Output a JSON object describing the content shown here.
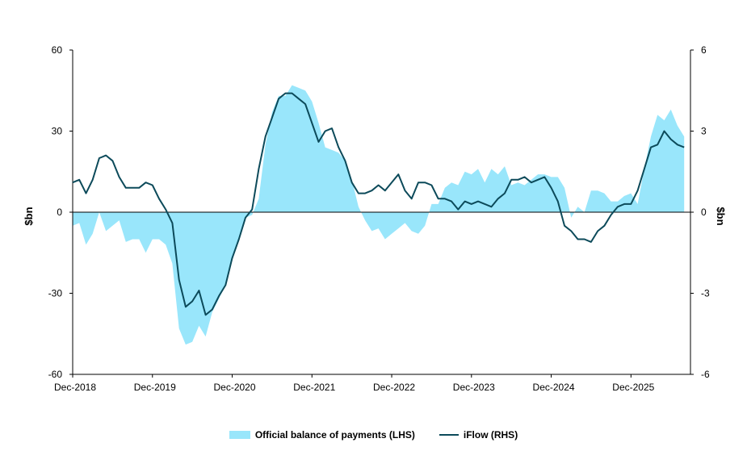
{
  "chart_data": {
    "type": "area+line",
    "ylabel_left": "$bn",
    "ylabel_right": "$bn",
    "ylim_left": [
      -60,
      60
    ],
    "ylim_right": [
      -6,
      6
    ],
    "yticks_left": [
      "60",
      "30",
      "0",
      "-30",
      "-60"
    ],
    "yticks_right": [
      "6",
      "3",
      "0",
      "-3",
      "-6"
    ],
    "x_tick_labels": [
      "Dec-2018",
      "Dec-2019",
      "Dec-2020",
      "Dec-2021",
      "Dec-2022",
      "Dec-2023",
      "Dec-2024",
      "Dec-2025"
    ],
    "x_start": "Dec-2018",
    "frequency": "monthly",
    "legend_position": "bottom",
    "series": [
      {
        "name": "Official balance of payments (LHS)",
        "type": "area",
        "axis": "left",
        "color": "#99e6fb",
        "values": [
          -5,
          -4,
          -12,
          -8,
          0,
          -7,
          -5,
          -3,
          -11,
          -10,
          -10,
          -15,
          -10,
          -10,
          -12,
          -19,
          -43,
          -49,
          -48,
          -42,
          -46,
          -37,
          -32,
          -27,
          -18,
          -10,
          -2,
          -1,
          5,
          25,
          37,
          43,
          43,
          47,
          46,
          45,
          41,
          33,
          24,
          23,
          22,
          19,
          12,
          2,
          -3,
          -7,
          -6,
          -10,
          -8,
          -6,
          -4,
          -7,
          -8,
          -5,
          3,
          3,
          9,
          11,
          10,
          15,
          14,
          16,
          11,
          16,
          14,
          17,
          10,
          11,
          10,
          12,
          14,
          14,
          13,
          13,
          9,
          -2,
          2,
          0,
          8,
          8,
          7,
          4,
          4,
          6,
          7,
          3,
          16,
          28,
          36,
          34,
          38,
          32,
          28
        ]
      },
      {
        "name": "iFlow (RHS)",
        "type": "line",
        "axis": "right",
        "color": "#0c4a5a",
        "values": [
          1.1,
          1.2,
          0.7,
          1.2,
          2.0,
          2.1,
          1.9,
          1.3,
          0.9,
          0.9,
          0.9,
          1.1,
          1.0,
          0.5,
          0.1,
          -0.4,
          -2.5,
          -3.5,
          -3.3,
          -2.9,
          -3.8,
          -3.6,
          -3.1,
          -2.7,
          -1.7,
          -1.0,
          -0.2,
          0.1,
          1.6,
          2.8,
          3.5,
          4.2,
          4.4,
          4.4,
          4.2,
          4.0,
          3.3,
          2.6,
          3.0,
          3.1,
          2.4,
          1.9,
          1.1,
          0.7,
          0.7,
          0.8,
          1.0,
          0.8,
          1.1,
          1.4,
          0.8,
          0.5,
          1.1,
          1.1,
          1.0,
          0.5,
          0.5,
          0.4,
          0.1,
          0.4,
          0.3,
          0.4,
          0.3,
          0.2,
          0.5,
          0.7,
          1.2,
          1.2,
          1.3,
          1.1,
          1.2,
          1.3,
          0.9,
          0.4,
          -0.5,
          -0.7,
          -1.0,
          -1.0,
          -1.1,
          -0.7,
          -0.5,
          -0.1,
          0.2,
          0.3,
          0.3,
          0.8,
          1.6,
          2.4,
          2.5,
          3.0,
          2.7,
          2.5,
          2.4
        ]
      }
    ]
  }
}
